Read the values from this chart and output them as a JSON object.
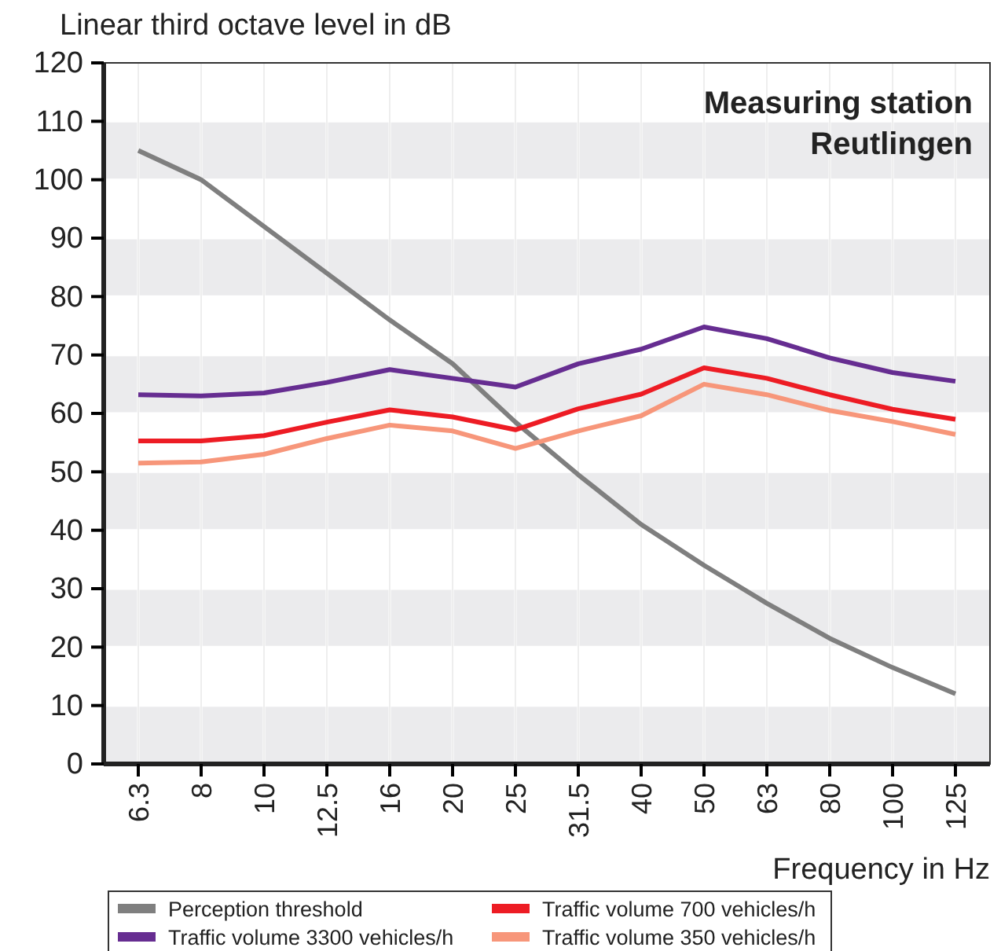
{
  "chart_data": {
    "type": "line",
    "title": "Measuring station Reutlingen",
    "xlabel": "Frequency in Hz",
    "ylabel": "Linear third octave level in dB",
    "categories": [
      "6.3",
      "8",
      "10",
      "12.5",
      "16",
      "20",
      "25",
      "31.5",
      "40",
      "50",
      "63",
      "80",
      "100",
      "125"
    ],
    "series": [
      {
        "name": "Perception threshold",
        "color": "#7f7f7f",
        "values": [
          105,
          100,
          92,
          84,
          76,
          68.5,
          58.5,
          49.5,
          41,
          34,
          27.5,
          21.5,
          16.5,
          12
        ]
      },
      {
        "name": "Traffic volume 3300 vehicles/h",
        "color": "#662d91",
        "values": [
          63.2,
          63,
          63.5,
          65.3,
          67.5,
          66,
          64.5,
          68.5,
          71,
          74.8,
          72.8,
          69.5,
          67,
          65.5
        ]
      },
      {
        "name": "Traffic volume 700 vehicles/h",
        "color": "#ed1c24",
        "values": [
          55.3,
          55.3,
          56.2,
          58.5,
          60.6,
          59.4,
          57.2,
          60.8,
          63.3,
          67.8,
          66,
          63.2,
          60.7,
          59
        ]
      },
      {
        "name": "Traffic volume 350 vehicles/h",
        "color": "#f7967a",
        "values": [
          51.5,
          51.7,
          53,
          55.7,
          58,
          57,
          54,
          57,
          59.6,
          65,
          63.2,
          60.5,
          58.6,
          56.4
        ]
      }
    ],
    "ylim": [
      0,
      120
    ],
    "yticks": [
      0,
      10,
      20,
      30,
      40,
      50,
      60,
      70,
      80,
      90,
      100,
      110,
      120
    ],
    "grid": true,
    "legend": "bottom",
    "marker": "none",
    "line_style": "solid"
  }
}
